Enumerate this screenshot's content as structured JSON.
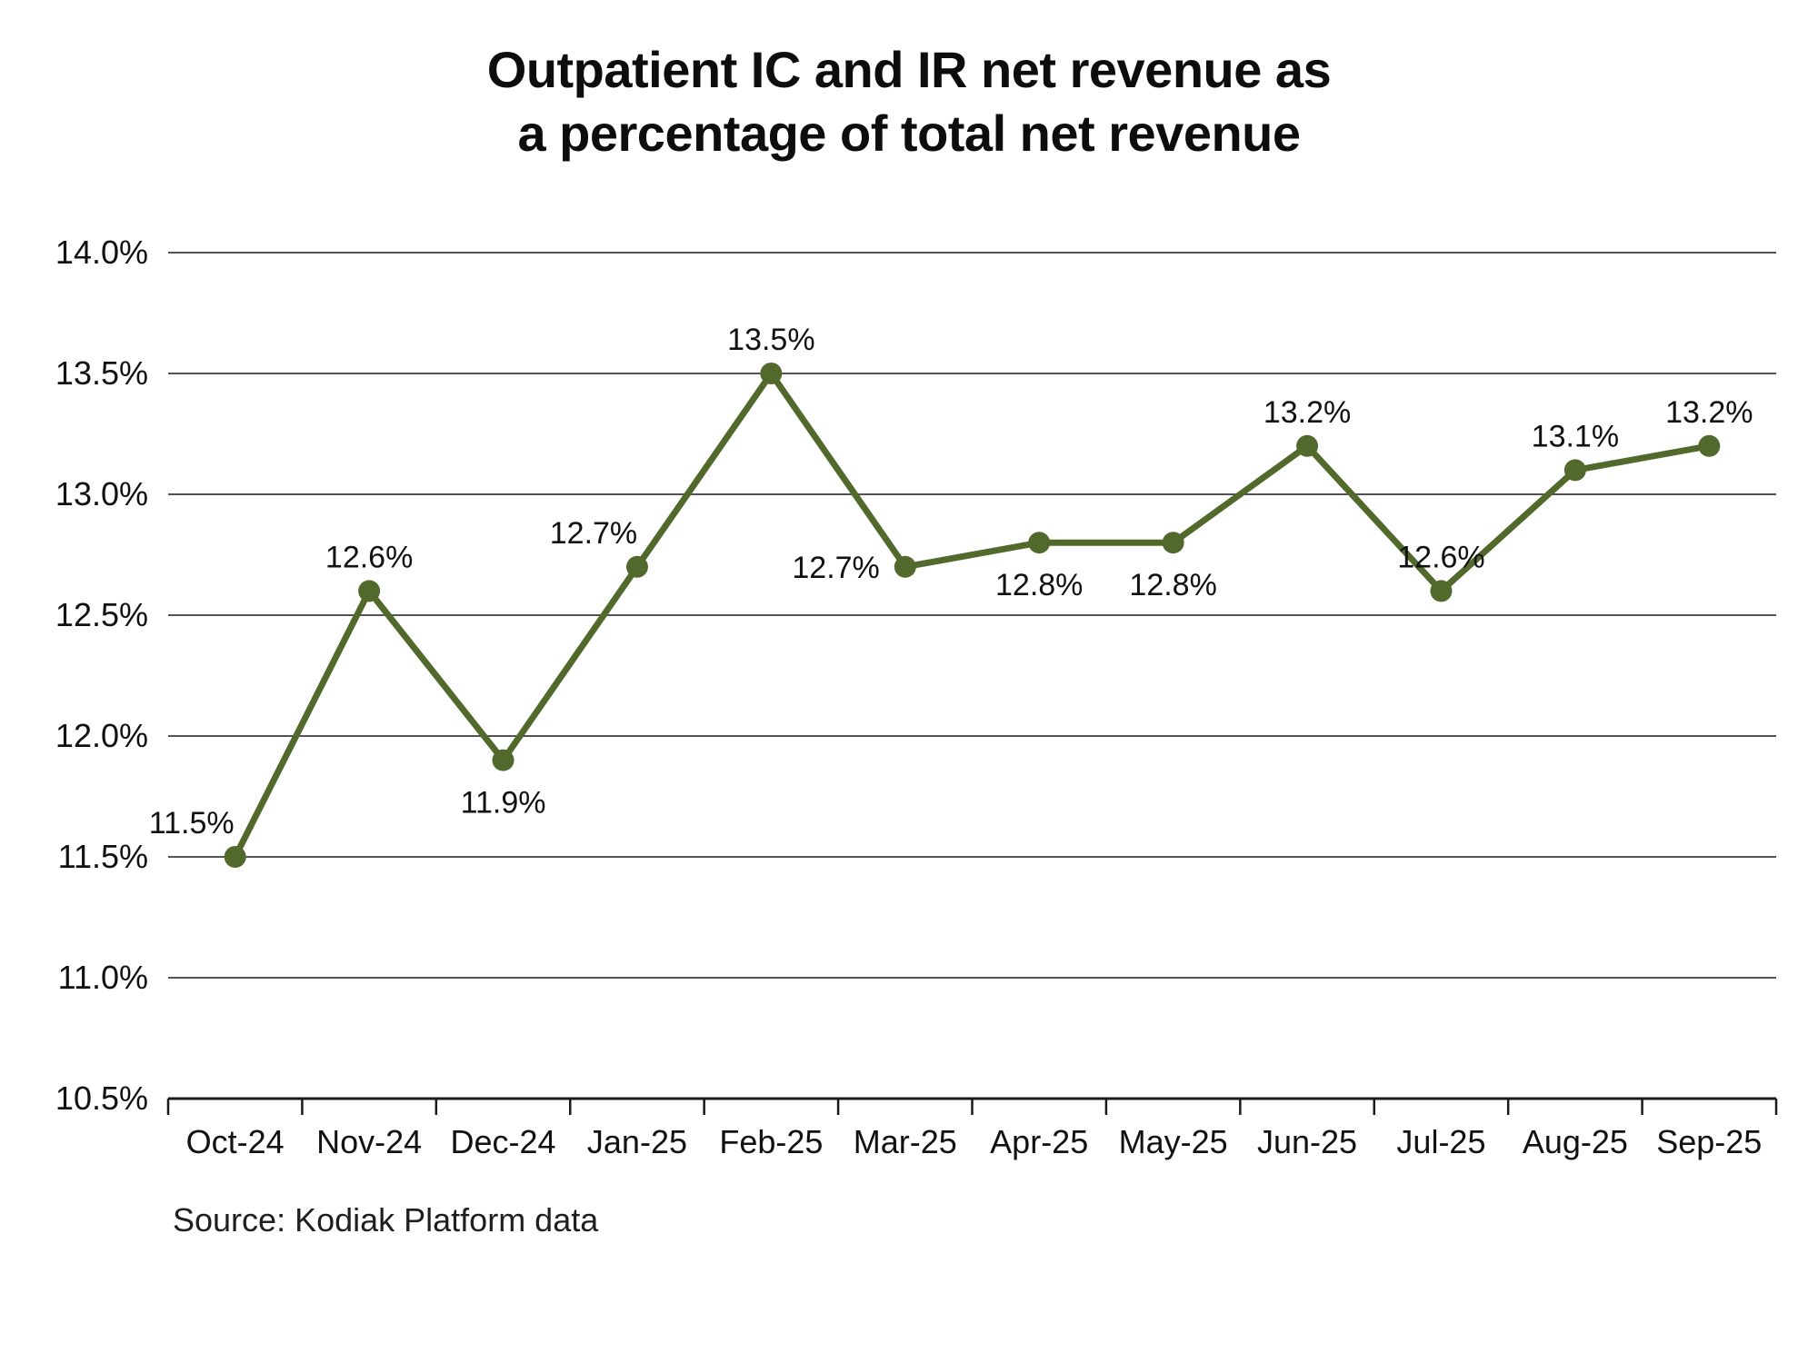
{
  "title": {
    "lines": [
      "Outpatient IC and IR net revenue as",
      "a percentage of total net revenue"
    ]
  },
  "source": "Source: Kodiak Platform data",
  "chart_data": {
    "type": "line",
    "title": "Outpatient IC and IR net revenue as a percentage of total net revenue",
    "categories": [
      "Oct-24",
      "Nov-24",
      "Dec-24",
      "Jan-25",
      "Feb-25",
      "Mar-25",
      "Apr-25",
      "May-25",
      "Jun-25",
      "Jul-25",
      "Aug-25",
      "Sep-25"
    ],
    "values": [
      11.5,
      12.6,
      11.9,
      12.7,
      13.5,
      12.7,
      12.8,
      12.8,
      13.2,
      12.6,
      13.1,
      13.2
    ],
    "point_labels": [
      "11.5%",
      "12.6%",
      "11.9%",
      "12.7%",
      "13.5%",
      "12.7%",
      "12.8%",
      "12.8%",
      "13.2%",
      "12.6%",
      "13.1%",
      "13.2%"
    ],
    "label_positions": [
      "above-left",
      "above",
      "below",
      "above-left",
      "above",
      "left",
      "below",
      "below",
      "above",
      "above",
      "above",
      "above"
    ],
    "xlabel": "",
    "ylabel": "",
    "ylim": [
      10.5,
      14.0
    ],
    "ytick_step": 0.5,
    "ytick_labels": [
      "10.5%",
      "11.0%",
      "11.5%",
      "12.0%",
      "12.5%",
      "13.0%",
      "13.5%",
      "14.0%"
    ],
    "grid": true,
    "legend": false,
    "line_color": "#52692C",
    "axis_color": "#1A1A1A",
    "label_color": "#111111"
  }
}
